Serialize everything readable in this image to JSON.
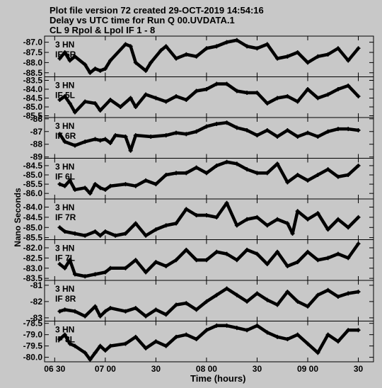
{
  "header": {
    "line1": "Plot file version 72  created 29-OCT-2019 14:54:16",
    "line2": "Delay vs UTC time for Run Q 00.UVDATA.1",
    "line3": "CL 9  Rpol & Lpol  IF 1 - 8"
  },
  "chart_data": {
    "type": "scatter",
    "title": "Delay vs UTC time for Run Q 00.UVDATA.1",
    "subtitle": "CL 9  Rpol & Lpol  IF 1 - 8",
    "xlabel": "Time (hours)",
    "ylabel": "Nano Seconds",
    "x_tick_labels": [
      "06 30",
      "07 00",
      "30",
      "08 00",
      "30",
      "09 00",
      "30"
    ],
    "x_tick_hours": [
      6.5,
      7.0,
      7.5,
      8.0,
      8.5,
      9.0,
      9.5
    ],
    "xlim": [
      6.4,
      9.65
    ],
    "grid": false,
    "panels": [
      {
        "antenna": "3 HN",
        "name": "IF 5R",
        "ylim": [
          -88.7,
          -86.7
        ],
        "y_ticks": [
          -87.0,
          -87.5,
          -88.0,
          -88.5
        ],
        "y_tick_labels": [
          "-87.0",
          "-87.5",
          "-88.0",
          "-88.5"
        ],
        "x": [
          6.55,
          6.6,
          6.65,
          6.7,
          6.8,
          6.85,
          6.9,
          6.95,
          7.0,
          7.05,
          7.2,
          7.25,
          7.3,
          7.4,
          7.45,
          7.55,
          7.6,
          7.7,
          7.8,
          7.9,
          8.0,
          8.1,
          8.2,
          8.3,
          8.4,
          8.5,
          8.6,
          8.7,
          8.8,
          8.9,
          9.0,
          9.1,
          9.2,
          9.3,
          9.4,
          9.5
        ],
        "y": [
          -87.8,
          -87.5,
          -87.9,
          -87.7,
          -88.1,
          -88.5,
          -88.3,
          -88.4,
          -88.3,
          -87.9,
          -87.1,
          -87.2,
          -88.0,
          -88.4,
          -88.0,
          -87.4,
          -87.2,
          -87.8,
          -87.6,
          -87.7,
          -87.3,
          -87.2,
          -87.0,
          -86.9,
          -87.2,
          -87.3,
          -87.1,
          -87.8,
          -87.7,
          -87.5,
          -88.0,
          -87.7,
          -87.6,
          -87.3,
          -87.9,
          -87.3
        ]
      },
      {
        "antenna": "3 HN",
        "name": "IF 5L",
        "ylim": [
          -85.6,
          -83.3
        ],
        "y_ticks": [
          -83.5,
          -84.0,
          -84.5,
          -85.0,
          -85.5
        ],
        "y_tick_labels": [
          "-83.5",
          "-84.0",
          "-84.5",
          "-85.0",
          "-85.5"
        ],
        "x": [
          6.55,
          6.6,
          6.65,
          6.7,
          6.8,
          6.9,
          6.95,
          7.05,
          7.15,
          7.25,
          7.3,
          7.4,
          7.5,
          7.6,
          7.7,
          7.8,
          7.9,
          8.0,
          8.1,
          8.2,
          8.3,
          8.4,
          8.5,
          8.6,
          8.7,
          8.8,
          8.9,
          9.0,
          9.1,
          9.2,
          9.3,
          9.4,
          9.5
        ],
        "y": [
          -84.6,
          -84.4,
          -84.8,
          -85.3,
          -84.7,
          -84.8,
          -85.2,
          -84.6,
          -85.0,
          -84.5,
          -85.0,
          -84.3,
          -84.5,
          -84.7,
          -84.4,
          -84.6,
          -84.1,
          -84.0,
          -83.7,
          -83.7,
          -84.1,
          -84.2,
          -84.2,
          -84.8,
          -84.5,
          -84.4,
          -84.7,
          -84.0,
          -84.5,
          -84.3,
          -84.0,
          -83.8,
          -84.4
        ]
      },
      {
        "antenna": "3 HN",
        "name": "IF 6R",
        "ylim": [
          -89.1,
          -85.9
        ],
        "y_ticks": [
          -86,
          -87,
          -88,
          -89
        ],
        "y_tick_labels": [
          "-86",
          "-87",
          "-88",
          "-89"
        ],
        "x": [
          6.55,
          6.6,
          6.7,
          6.8,
          6.9,
          6.95,
          7.0,
          7.05,
          7.1,
          7.2,
          7.25,
          7.3,
          7.45,
          7.6,
          7.7,
          7.8,
          7.9,
          8.0,
          8.1,
          8.2,
          8.3,
          8.4,
          8.5,
          8.6,
          8.7,
          8.8,
          8.9,
          9.0,
          9.1,
          9.2,
          9.3,
          9.4,
          9.5
        ],
        "y": [
          -87.2,
          -87.8,
          -88.1,
          -87.8,
          -87.6,
          -87.7,
          -87.6,
          -87.9,
          -87.3,
          -87.4,
          -88.5,
          -87.3,
          -87.4,
          -87.3,
          -87.1,
          -87.2,
          -87.0,
          -86.6,
          -86.4,
          -86.3,
          -86.7,
          -86.9,
          -87.3,
          -86.9,
          -87.4,
          -86.9,
          -87.4,
          -87.1,
          -87.4,
          -87.0,
          -86.8,
          -86.8,
          -86.9
        ]
      },
      {
        "antenna": "3 HN",
        "name": "IF 6L",
        "ylim": [
          -86.3,
          -84.1
        ],
        "y_ticks": [
          -84.5,
          -85.0,
          -85.5,
          -86.0
        ],
        "y_tick_labels": [
          "-84.5",
          "-85.0",
          "-85.5",
          "-86.0"
        ],
        "x": [
          6.55,
          6.6,
          6.65,
          6.7,
          6.8,
          6.85,
          6.9,
          6.95,
          7.0,
          7.05,
          7.2,
          7.3,
          7.4,
          7.5,
          7.6,
          7.7,
          7.8,
          7.9,
          8.0,
          8.1,
          8.2,
          8.3,
          8.4,
          8.5,
          8.6,
          8.7,
          8.8,
          8.9,
          9.0,
          9.1,
          9.2,
          9.3,
          9.4,
          9.5
        ],
        "y": [
          -85.5,
          -85.6,
          -85.3,
          -85.8,
          -85.7,
          -86.0,
          -85.5,
          -85.7,
          -85.8,
          -85.6,
          -85.5,
          -85.6,
          -85.3,
          -85.5,
          -85.0,
          -84.9,
          -84.9,
          -84.6,
          -84.9,
          -84.5,
          -84.3,
          -84.4,
          -84.7,
          -84.9,
          -84.9,
          -84.4,
          -85.4,
          -85.0,
          -85.3,
          -85.0,
          -84.7,
          -85.1,
          -85.0,
          -84.5
        ]
      },
      {
        "antenna": "3 HN",
        "name": "IF 7R",
        "ylim": [
          -85.6,
          -83.6
        ],
        "y_ticks": [
          -84.0,
          -84.5,
          -85.0,
          -85.5
        ],
        "y_tick_labels": [
          "-84.0",
          "-84.5",
          "-85.0",
          "-85.5"
        ],
        "x": [
          6.55,
          6.6,
          6.7,
          6.8,
          6.9,
          6.95,
          7.0,
          7.1,
          7.2,
          7.3,
          7.4,
          7.5,
          7.6,
          7.7,
          7.8,
          7.9,
          8.0,
          8.1,
          8.2,
          8.3,
          8.4,
          8.5,
          8.6,
          8.7,
          8.8,
          8.85,
          8.9,
          9.0,
          9.1,
          9.2,
          9.3,
          9.4,
          9.5
        ],
        "y": [
          -85.0,
          -85.2,
          -85.3,
          -85.4,
          -85.2,
          -85.4,
          -85.2,
          -85.4,
          -85.3,
          -84.8,
          -85.4,
          -85.1,
          -84.9,
          -84.8,
          -84.1,
          -84.4,
          -84.4,
          -84.5,
          -83.8,
          -84.9,
          -84.6,
          -84.5,
          -84.9,
          -84.6,
          -84.8,
          -85.3,
          -84.2,
          -84.6,
          -84.3,
          -85.1,
          -84.6,
          -85.0,
          -84.5
        ]
      },
      {
        "antenna": "3 HN",
        "name": "IF 7L",
        "ylim": [
          -83.6,
          -81.6
        ],
        "y_ticks": [
          -82.0,
          -82.5,
          -83.0,
          -83.5
        ],
        "y_tick_labels": [
          "-82.0",
          "-82.5",
          "-83.0",
          "-83.5"
        ],
        "x": [
          6.55,
          6.6,
          6.65,
          6.7,
          6.8,
          6.9,
          7.0,
          7.05,
          7.2,
          7.3,
          7.4,
          7.5,
          7.6,
          7.7,
          7.8,
          7.9,
          8.0,
          8.1,
          8.2,
          8.3,
          8.4,
          8.5,
          8.6,
          8.7,
          8.8,
          8.9,
          9.0,
          9.1,
          9.2,
          9.3,
          9.4,
          9.5
        ],
        "y": [
          -82.8,
          -83.0,
          -82.6,
          -83.3,
          -83.4,
          -83.3,
          -83.2,
          -83.0,
          -83.0,
          -82.6,
          -83.2,
          -82.7,
          -82.9,
          -82.6,
          -82.1,
          -82.6,
          -82.6,
          -82.2,
          -82.3,
          -82.6,
          -82.1,
          -82.3,
          -82.8,
          -82.2,
          -82.9,
          -82.7,
          -82.2,
          -82.6,
          -82.5,
          -82.3,
          -82.5,
          -81.8
        ]
      },
      {
        "antenna": "3 HN",
        "name": "IF 8R",
        "ylim": [
          -83.2,
          -80.7
        ],
        "y_ticks": [
          -81,
          -82,
          -83
        ],
        "y_tick_labels": [
          "-81",
          "-82",
          "-83"
        ],
        "x": [
          6.55,
          6.6,
          6.7,
          6.8,
          6.9,
          6.95,
          7.0,
          7.05,
          7.2,
          7.3,
          7.4,
          7.5,
          7.6,
          7.7,
          7.8,
          7.9,
          8.0,
          8.1,
          8.2,
          8.3,
          8.4,
          8.5,
          8.6,
          8.7,
          8.8,
          8.9,
          9.0,
          9.1,
          9.2,
          9.3,
          9.4,
          9.5
        ],
        "y": [
          -82.6,
          -82.5,
          -82.6,
          -82.9,
          -82.3,
          -82.9,
          -82.6,
          -82.4,
          -82.6,
          -82.4,
          -82.9,
          -82.5,
          -82.8,
          -82.2,
          -82.1,
          -82.5,
          -82.0,
          -81.6,
          -81.2,
          -81.6,
          -82.0,
          -81.5,
          -81.9,
          -82.2,
          -81.4,
          -82.0,
          -82.3,
          -81.6,
          -81.3,
          -81.7,
          -81.5,
          -81.4
        ]
      },
      {
        "antenna": "3 HN",
        "name": "IF 8L",
        "ylim": [
          -80.2,
          -78.4
        ],
        "y_ticks": [
          -78.5,
          -79.0,
          -79.5,
          -80.0
        ],
        "y_tick_labels": [
          "-78.5",
          "-79.0",
          "-79.5",
          "-80.0"
        ],
        "x": [
          6.55,
          6.6,
          6.65,
          6.7,
          6.8,
          6.85,
          6.9,
          6.95,
          7.0,
          7.05,
          7.2,
          7.3,
          7.4,
          7.5,
          7.6,
          7.7,
          7.8,
          7.9,
          8.0,
          8.1,
          8.2,
          8.3,
          8.4,
          8.5,
          8.6,
          8.7,
          8.8,
          8.9,
          9.0,
          9.1,
          9.2,
          9.3,
          9.4,
          9.5
        ],
        "y": [
          -79.2,
          -79.0,
          -79.4,
          -79.5,
          -79.8,
          -80.1,
          -79.8,
          -79.5,
          -79.7,
          -79.5,
          -79.4,
          -79.1,
          -79.6,
          -79.3,
          -79.5,
          -79.1,
          -79.0,
          -79.2,
          -78.8,
          -78.6,
          -78.6,
          -78.7,
          -78.8,
          -78.6,
          -78.9,
          -79.1,
          -79.2,
          -79.0,
          -79.4,
          -79.8,
          -79.0,
          -79.3,
          -78.8,
          -78.8
        ]
      }
    ]
  }
}
